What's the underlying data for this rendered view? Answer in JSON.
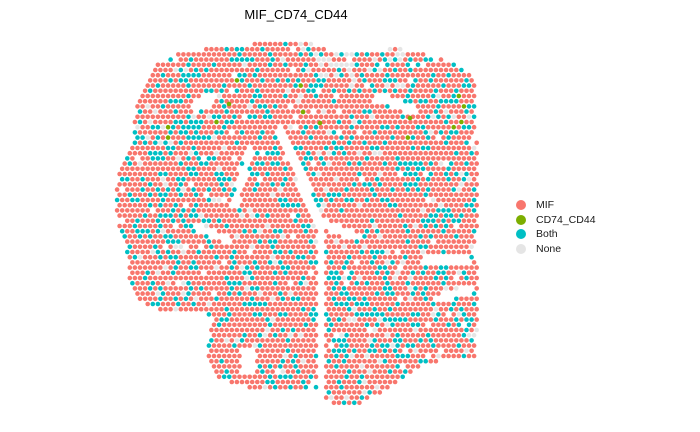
{
  "chart_data": {
    "type": "scatter",
    "title": "MIF_CD74_CD44",
    "xlabel": "",
    "ylabel": "",
    "grid": false,
    "legend_position": "right",
    "legend": [
      {
        "name": "MIF",
        "color": "#F8766D"
      },
      {
        "name": "CD74_CD44",
        "color": "#7CAE00"
      },
      {
        "name": "Both",
        "color": "#00BFC4"
      },
      {
        "name": "None",
        "color": "#E5E5E5"
      }
    ],
    "spot_layout": "hexagonal grid of spatial transcriptomics spots",
    "category_share_estimate": {
      "MIF": 0.7,
      "Both": 0.24,
      "None": 0.05,
      "CD74_CD44": 0.01
    }
  }
}
